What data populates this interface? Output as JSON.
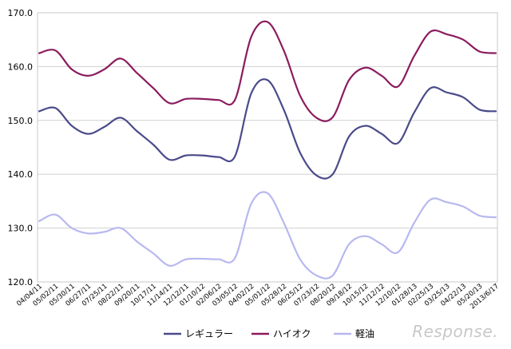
{
  "chart_data": {
    "type": "line",
    "title": "",
    "xlabel": "",
    "ylabel": "",
    "ylim": [
      120,
      170
    ],
    "yticks": [
      "120.0",
      "130.0",
      "140.0",
      "150.0",
      "160.0",
      "170.0"
    ],
    "grid": true,
    "legend_position": "bottom",
    "categories": [
      "04/04/11",
      "05/02/11",
      "05/30/11",
      "06/27/11",
      "07/25/11",
      "08/22/11",
      "09/20/11",
      "10/17/11",
      "11/14/11",
      "12/12/11",
      "01/10/12",
      "02/06/12",
      "03/05/12",
      "04/02/12",
      "05/01/12",
      "05/28/12",
      "06/25/12",
      "07/23/12",
      "08/20/12",
      "09/18/12",
      "10/15/12",
      "11/12/12",
      "12/10/12",
      "01/28/13",
      "02/25/13",
      "03/25/13",
      "04/22/13",
      "05/20/13",
      "2013/6/17"
    ],
    "series": [
      {
        "name": "レギュラー",
        "color": "#4a4a8a",
        "values": [
          151.7,
          152.3,
          149.0,
          147.5,
          148.8,
          150.5,
          148.0,
          145.5,
          142.7,
          143.5,
          143.5,
          143.2,
          143.3,
          155.0,
          157.5,
          152.0,
          144.0,
          139.8,
          140.0,
          147.0,
          149.0,
          147.5,
          145.8,
          151.5,
          156.0,
          155.2,
          154.3,
          152.0,
          151.7
        ]
      },
      {
        "name": "ハイオク",
        "color": "#8b1c5e",
        "values": [
          162.5,
          163.0,
          159.5,
          158.3,
          159.5,
          161.5,
          158.8,
          156.0,
          153.2,
          154.0,
          154.0,
          153.8,
          153.8,
          165.5,
          168.3,
          163.0,
          154.6,
          150.5,
          150.6,
          157.5,
          159.8,
          158.3,
          156.3,
          162.0,
          166.5,
          166.0,
          165.0,
          162.8,
          162.5
        ]
      },
      {
        "name": "軽油",
        "color": "#b8b8f0",
        "values": [
          131.3,
          132.5,
          130.0,
          129.0,
          129.3,
          130.0,
          127.5,
          125.3,
          123.0,
          124.2,
          124.3,
          124.2,
          124.4,
          134.5,
          136.5,
          131.0,
          124.2,
          121.2,
          121.2,
          127.0,
          128.5,
          127.0,
          125.5,
          131.0,
          135.3,
          134.8,
          134.0,
          132.3,
          132.0
        ]
      }
    ]
  },
  "watermark": "Response."
}
